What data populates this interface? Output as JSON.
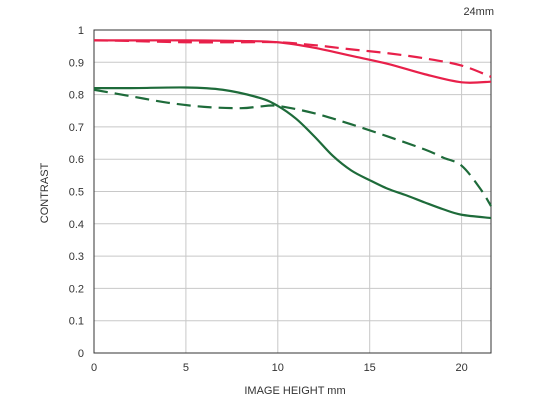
{
  "chart_data": {
    "type": "line",
    "title": "24mm",
    "xlabel": "IMAGE HEIGHT   mm",
    "ylabel": "CONTRAST",
    "xlim": [
      0,
      21.6
    ],
    "ylim": [
      0,
      1
    ],
    "x_ticks": [
      0,
      5,
      10,
      15,
      20
    ],
    "y_ticks": [
      0,
      0.1,
      0.2,
      0.3,
      0.4,
      0.5,
      0.6,
      0.7,
      0.8,
      0.9,
      1
    ],
    "y_tick_labels": [
      "0",
      "0.1",
      "0.2",
      "0.3",
      "0.4",
      "0.5",
      "0.6",
      "0.7",
      "0.8",
      "0.9",
      "1"
    ],
    "grid": true,
    "series": [
      {
        "color": "#e8204a",
        "dash": "solid",
        "points": [
          [
            0,
            0.968
          ],
          [
            2,
            0.968
          ],
          [
            5,
            0.968
          ],
          [
            8,
            0.966
          ],
          [
            10,
            0.962
          ],
          [
            12,
            0.945
          ],
          [
            14,
            0.92
          ],
          [
            16,
            0.895
          ],
          [
            18,
            0.863
          ],
          [
            20,
            0.838
          ],
          [
            21.6,
            0.84
          ]
        ]
      },
      {
        "color": "#e8204a",
        "dash": "dashed",
        "points": [
          [
            0,
            0.968
          ],
          [
            2,
            0.966
          ],
          [
            5,
            0.962
          ],
          [
            8,
            0.962
          ],
          [
            10,
            0.962
          ],
          [
            12,
            0.953
          ],
          [
            14,
            0.94
          ],
          [
            16,
            0.928
          ],
          [
            18,
            0.912
          ],
          [
            20,
            0.89
          ],
          [
            21.6,
            0.855
          ]
        ]
      },
      {
        "color": "#1e6b3a",
        "dash": "solid",
        "points": [
          [
            0,
            0.82
          ],
          [
            2,
            0.82
          ],
          [
            5,
            0.822
          ],
          [
            7,
            0.815
          ],
          [
            9,
            0.79
          ],
          [
            10,
            0.765
          ],
          [
            11,
            0.725
          ],
          [
            12,
            0.67
          ],
          [
            13,
            0.61
          ],
          [
            14,
            0.565
          ],
          [
            15,
            0.535
          ],
          [
            16,
            0.508
          ],
          [
            17,
            0.488
          ],
          [
            18,
            0.466
          ],
          [
            19,
            0.445
          ],
          [
            20,
            0.428
          ],
          [
            21.6,
            0.418
          ]
        ]
      },
      {
        "color": "#1e6b3a",
        "dash": "dashed",
        "points": [
          [
            0,
            0.815
          ],
          [
            2,
            0.795
          ],
          [
            4,
            0.775
          ],
          [
            6,
            0.762
          ],
          [
            8,
            0.758
          ],
          [
            9,
            0.763
          ],
          [
            10,
            0.765
          ],
          [
            12,
            0.742
          ],
          [
            14,
            0.708
          ],
          [
            16,
            0.67
          ],
          [
            18,
            0.63
          ],
          [
            19,
            0.605
          ],
          [
            20,
            0.58
          ],
          [
            21,
            0.51
          ],
          [
            21.6,
            0.455
          ]
        ]
      }
    ]
  }
}
